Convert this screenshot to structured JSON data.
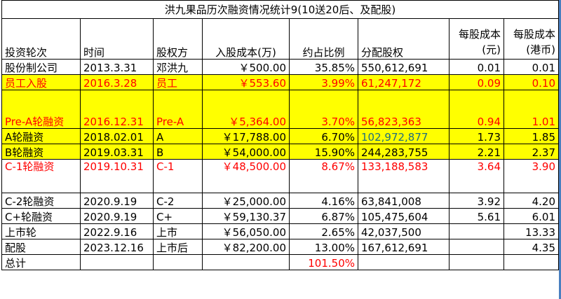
{
  "title": "洪九果品历次融资情况统计9(10送20后、及配股)",
  "headers": [
    "投资轮次",
    "时间",
    "股权方",
    "入股成本(万)",
    "约占比例",
    "分配股权",
    "每股成本(元)",
    "每股成本(港币)"
  ],
  "rows": [
    {
      "round": "股份制公司",
      "date": "2013.3.31",
      "holder": "邓洪九",
      "cost": "￥500.00",
      "ratio": "35.85%",
      "shares": "550,612,691",
      "cny": "0.01",
      "hkd": "0.01"
    },
    {
      "round": "员工入股",
      "date": "2016.3.28",
      "holder": "员工",
      "cost": "￥553.60",
      "ratio": "3.99%",
      "shares": "61,247,172",
      "cny": "0.09",
      "hkd": "0.10"
    },
    {
      "round": "Pre-A轮融资",
      "date": "2016.12.31",
      "holder": "Pre-A",
      "cost": "￥5,364.00",
      "ratio": "3.70%",
      "shares": "56,823,363",
      "cny": "0.94",
      "hkd": "1.01"
    },
    {
      "round": "A轮融资",
      "date": "2018.02.01",
      "holder": "A",
      "cost": "￥17,788.00",
      "ratio": "6.70%",
      "shares": "102,972,877",
      "cny": "1.73",
      "hkd": "1.85"
    },
    {
      "round": "B轮融资",
      "date": "2019.03.31",
      "holder": "B",
      "cost": "￥54,000.00",
      "ratio": "15.90%",
      "shares": "244,283,755",
      "cny": "2.21",
      "hkd": "2.37"
    },
    {
      "round": "C-1轮融资",
      "date": "2019.10.31",
      "holder": "C-1",
      "cost": "￥48,500.00",
      "ratio": "8.67%",
      "shares": "133,188,583",
      "cny": "3.64",
      "hkd": "3.90"
    },
    {
      "round": "C-2轮融资",
      "date": "2020.9.19",
      "holder": "C-2",
      "cost": "￥25,000.00",
      "ratio": "4.16%",
      "shares": "63,841,008",
      "cny": "3.92",
      "hkd": "4.20"
    },
    {
      "round": "C+轮融资",
      "date": "2020.9.19",
      "holder": "C+",
      "cost": "￥59,130.37",
      "ratio": "6.87%",
      "shares": "105,475,604",
      "cny": "5.61",
      "hkd": "6.01"
    },
    {
      "round": "上市轮",
      "date": "2022.9.16",
      "holder": "上市",
      "cost": "￥56,050.00",
      "ratio": "2.65%",
      "shares": "42,037,500",
      "cny": "",
      "hkd": "13.33"
    },
    {
      "round": "配股",
      "date": "2023.12.16",
      "holder": "上市后",
      "cost": "￥82,200.00",
      "ratio": "13.00%",
      "shares": "167,612,691",
      "cny": "",
      "hkd": "4.35"
    }
  ],
  "total": {
    "label": "总计",
    "ratio": "101.50%"
  },
  "colors": {
    "highlight": "#ffff00",
    "red_text": "#ff0000",
    "teal_text": "#1f6f7f"
  }
}
